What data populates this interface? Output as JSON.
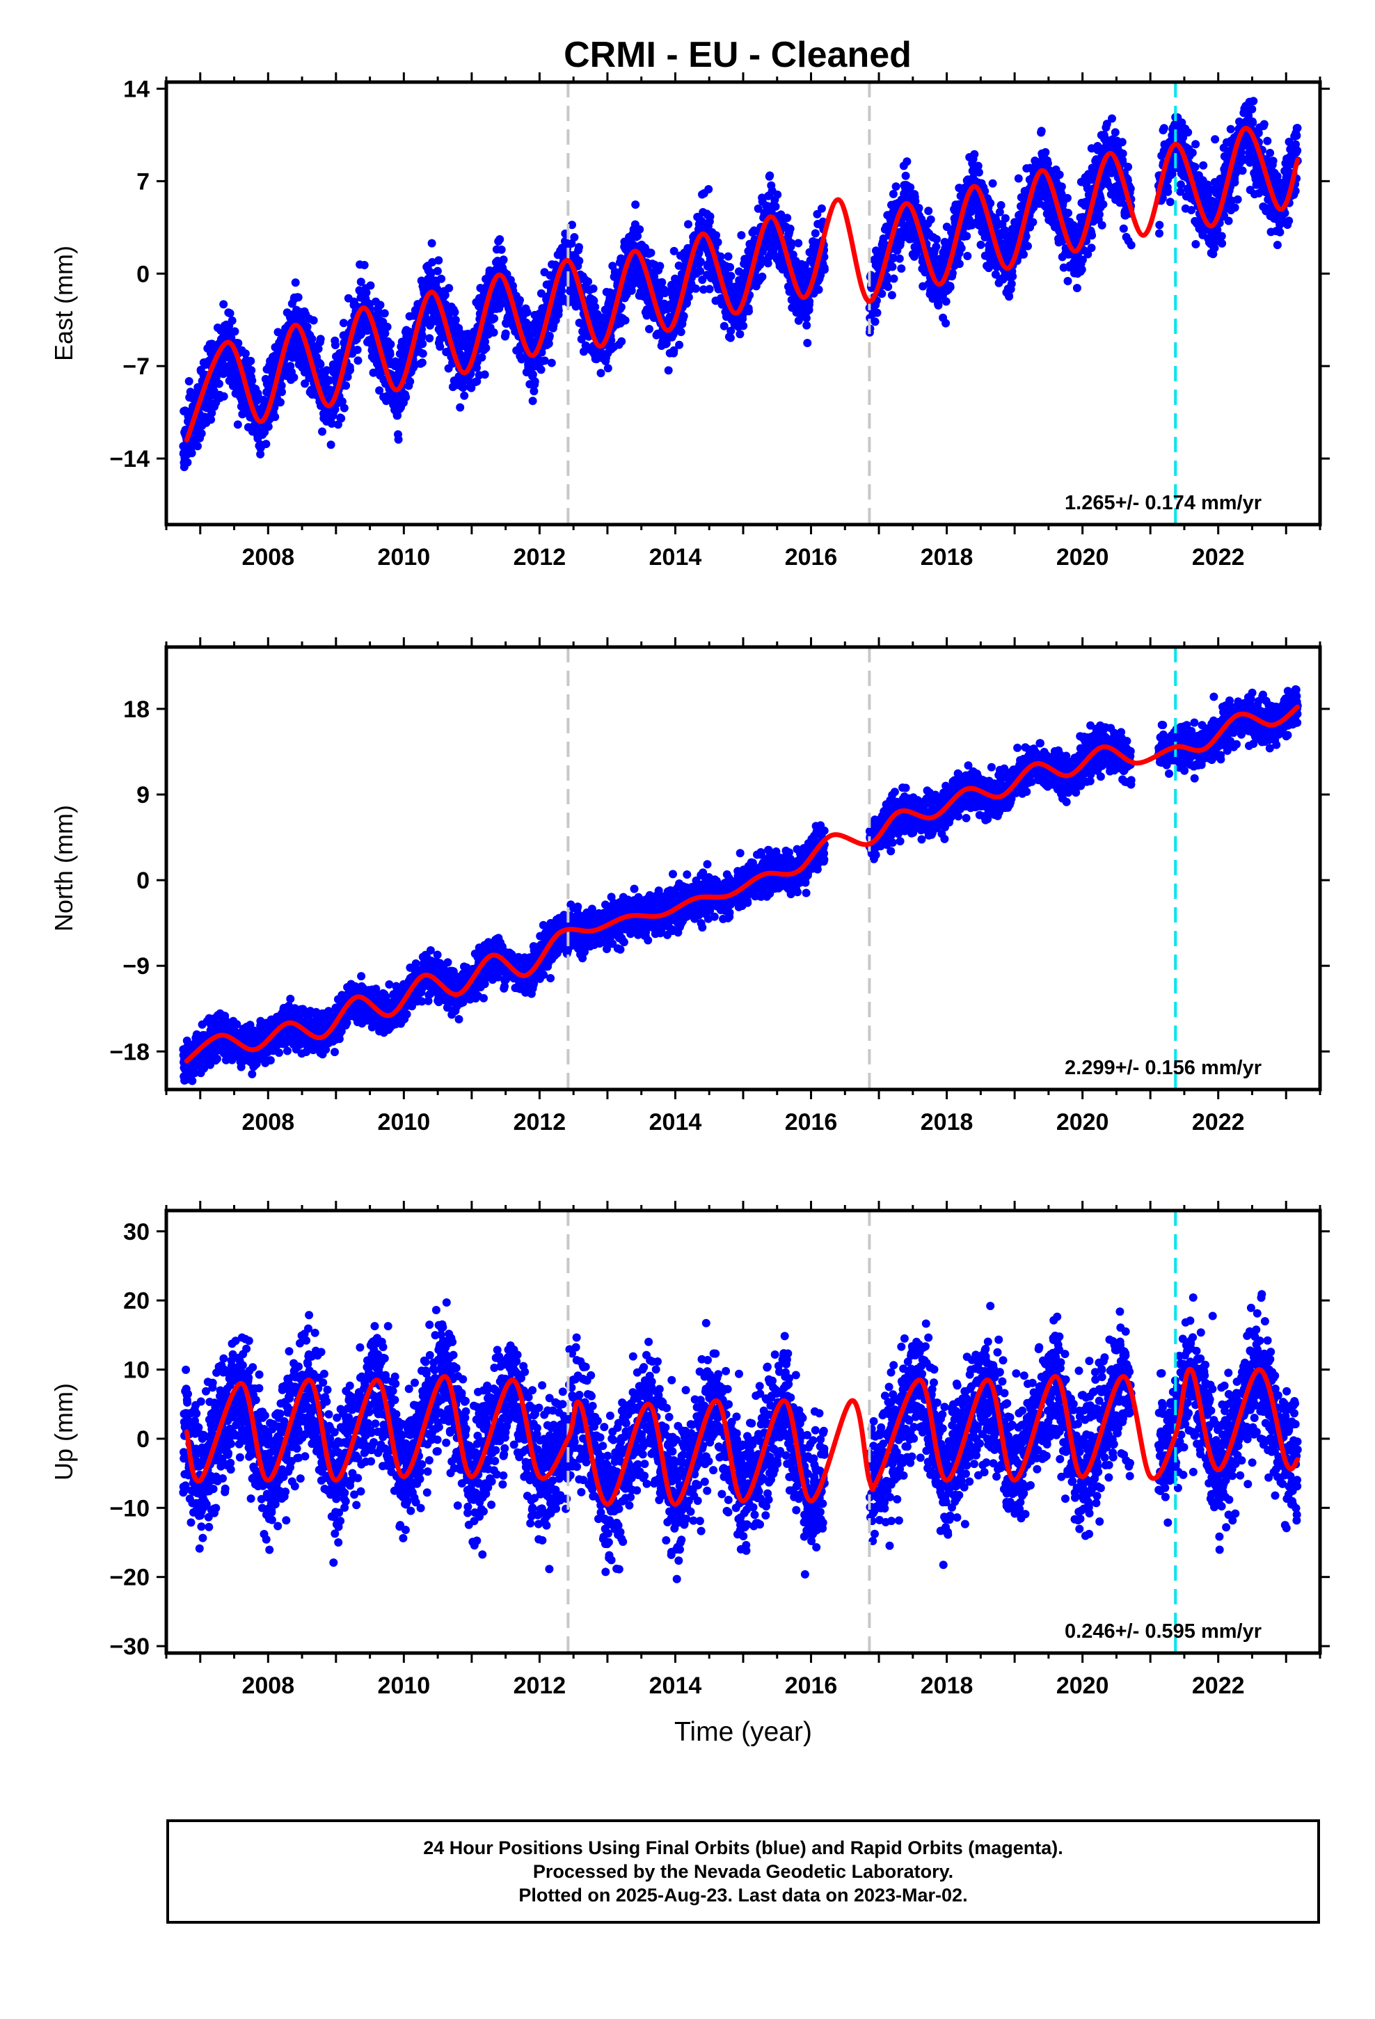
{
  "figure": {
    "title": "CRMI  - EU - Cleaned",
    "xlabel": "Time (year)",
    "footer": [
      "24 Hour Positions Using Final Orbits (blue) and Rapid Orbits (magenta).",
      "Processed by the Nevada Geodetic Laboratory.",
      "Plotted on 2025-Aug-23. Last data on 2023-Mar-02."
    ]
  },
  "colors": {
    "data_points": "#0000ff",
    "model_fit": "#ff0000",
    "equipment_change_line": "#c8c8c8",
    "earthquake_line": "#00e5ee",
    "frame": "#000000"
  },
  "chart_data": [
    {
      "type": "scatter",
      "component": "East",
      "ylabel": "East (mm)",
      "xlim": [
        2006.5,
        2023.5
      ],
      "ylim": [
        -19,
        14.5
      ],
      "yticks": [
        14,
        7,
        0,
        -7,
        -14
      ],
      "xticks": [
        2008,
        2010,
        2012,
        2014,
        2016,
        2018,
        2020,
        2022
      ],
      "rate_label": "1.265+/- 0.174 mm/yr",
      "vertical_lines": [
        {
          "x": 2012.42,
          "style": "dashed",
          "color": "#c8c8c8"
        },
        {
          "x": 2016.86,
          "style": "dashed",
          "color": "#c8c8c8"
        },
        {
          "x": 2021.37,
          "style": "dashed",
          "color": "#00e5ee"
        }
      ],
      "series": [
        {
          "role": "data",
          "x_range": [
            2006.75,
            2023.17
          ],
          "gaps": [
            [
              2016.2,
              2016.86
            ],
            [
              2020.72,
              2021.12
            ]
          ],
          "point_count": 5600,
          "trend": [
            [
              2006.8,
              -11.5
            ],
            [
              2012.4,
              -4.0
            ],
            [
              2012.42,
              -1.8
            ],
            [
              2016.86,
              0.0
            ],
            [
              2016.86,
              0.5
            ],
            [
              2021.37,
              5.0
            ],
            [
              2023.17,
              6.8
            ]
          ],
          "seasonal_amplitude": 3.2,
          "scatter_sd": 1.35
        },
        {
          "role": "model",
          "name": "",
          "x": [
            2006.8,
            2007.4,
            2007.9,
            2008.4,
            2008.9,
            2009.4,
            2009.9,
            2010.4,
            2010.9,
            2011.4,
            2011.9,
            2012.4,
            2012.9,
            2013.4,
            2013.9,
            2014.4,
            2014.9,
            2015.4,
            2015.9,
            2016.4,
            2016.86,
            2017.4,
            2017.9,
            2018.4,
            2018.9,
            2019.4,
            2019.9,
            2020.4,
            2020.9,
            2021.37,
            2021.9,
            2022.4,
            2022.9,
            2023.17
          ],
          "y": [
            -12.6,
            -5.2,
            -11.2,
            -3.9,
            -10.0,
            -2.6,
            -8.8,
            -1.4,
            -7.5,
            -0.1,
            -6.2,
            1.0,
            -5.5,
            1.7,
            -4.3,
            3.0,
            -3.0,
            4.3,
            -1.8,
            5.6,
            -2.1,
            5.3,
            -0.8,
            6.6,
            0.4,
            7.8,
            1.7,
            9.1,
            2.9,
            9.8,
            3.6,
            11.0,
            4.9,
            8.6
          ]
        }
      ]
    },
    {
      "type": "scatter",
      "component": "North",
      "ylabel": "North (mm)",
      "xlim": [
        2006.5,
        2023.5
      ],
      "ylim": [
        -22,
        24.5
      ],
      "yticks": [
        18,
        9,
        0,
        -9,
        -18
      ],
      "xticks": [
        2008,
        2010,
        2012,
        2014,
        2016,
        2018,
        2020,
        2022
      ],
      "rate_label": "2.299+/- 0.156 mm/yr",
      "vertical_lines": [
        {
          "x": 2012.42,
          "style": "dashed",
          "color": "#c8c8c8"
        },
        {
          "x": 2016.86,
          "style": "dashed",
          "color": "#c8c8c8"
        },
        {
          "x": 2021.37,
          "style": "dashed",
          "color": "#00e5ee"
        }
      ],
      "series": [
        {
          "role": "data",
          "x_range": [
            2006.75,
            2023.17
          ],
          "gaps": [
            [
              2016.2,
              2016.86
            ],
            [
              2020.72,
              2021.12
            ]
          ],
          "point_count": 5600,
          "trend": [
            [
              2006.8,
              -19.0
            ],
            [
              2012.4,
              -6.3
            ],
            [
              2012.42,
              -5.5
            ],
            [
              2016.86,
              3.8
            ],
            [
              2016.86,
              4.3
            ],
            [
              2021.37,
              14.0
            ],
            [
              2023.17,
              17.8
            ]
          ],
          "seasonal_amplitude": 1.1,
          "scatter_sd": 1.05
        },
        {
          "role": "model",
          "name": "",
          "x": [
            2006.8,
            2007.3,
            2007.8,
            2008.3,
            2008.8,
            2009.3,
            2009.8,
            2010.3,
            2010.8,
            2011.3,
            2011.8,
            2012.3,
            2012.8,
            2013.3,
            2013.8,
            2014.3,
            2014.8,
            2015.3,
            2015.8,
            2016.3,
            2016.86,
            2017.3,
            2017.8,
            2018.3,
            2018.8,
            2019.3,
            2019.8,
            2020.3,
            2020.8,
            2021.37,
            2021.8,
            2022.3,
            2022.8,
            2023.17
          ],
          "y": [
            -19.0,
            -16.3,
            -17.8,
            -15.0,
            -16.5,
            -12.3,
            -14.2,
            -10.0,
            -12.0,
            -7.9,
            -10.0,
            -5.5,
            -5.3,
            -3.8,
            -3.7,
            -1.9,
            -1.6,
            0.6,
            0.9,
            4.7,
            3.8,
            7.2,
            6.6,
            9.6,
            8.8,
            12.2,
            11.0,
            14.0,
            12.3,
            14.0,
            13.8,
            17.4,
            16.3,
            18.2
          ]
        }
      ]
    },
    {
      "type": "scatter",
      "component": "Up",
      "ylabel": "Up (mm)",
      "xlim": [
        2006.5,
        2023.5
      ],
      "ylim": [
        -31,
        33
      ],
      "yticks": [
        30,
        20,
        10,
        0,
        -10,
        -20,
        -30
      ],
      "xticks": [
        2008,
        2010,
        2012,
        2014,
        2016,
        2018,
        2020,
        2022
      ],
      "rate_label": "0.246+/- 0.595 mm/yr",
      "vertical_lines": [
        {
          "x": 2012.42,
          "style": "dashed",
          "color": "#c8c8c8"
        },
        {
          "x": 2016.86,
          "style": "dashed",
          "color": "#c8c8c8"
        },
        {
          "x": 2021.37,
          "style": "dashed",
          "color": "#00e5ee"
        }
      ],
      "series": [
        {
          "role": "data",
          "x_range": [
            2006.75,
            2023.17
          ],
          "gaps": [
            [
              2016.2,
              2016.86
            ],
            [
              2020.72,
              2021.12
            ]
          ],
          "point_count": 5600,
          "trend": [
            [
              2006.8,
              0.0
            ],
            [
              2023.17,
              0.5
            ]
          ],
          "seasonal_amplitude": 7.0,
          "scatter_sd": 4.5
        },
        {
          "role": "model",
          "name": "",
          "x": [
            2006.8,
            2007.0,
            2007.6,
            2008.0,
            2008.6,
            2009.0,
            2009.6,
            2010.0,
            2010.6,
            2011.0,
            2011.6,
            2012.0,
            2012.42,
            2012.6,
            2013.0,
            2013.6,
            2014.0,
            2014.6,
            2015.0,
            2015.6,
            2016.0,
            2016.6,
            2016.86,
            2017.0,
            2017.6,
            2018.0,
            2018.6,
            2019.0,
            2019.6,
            2020.0,
            2020.6,
            2021.0,
            2021.37,
            2021.6,
            2022.0,
            2022.6,
            2023.0,
            2023.17
          ],
          "y": [
            1.0,
            -6.0,
            8.0,
            -6.0,
            8.5,
            -6.0,
            8.5,
            -5.5,
            9.0,
            -5.5,
            8.5,
            -5.5,
            0.0,
            5.0,
            -9.5,
            5.0,
            -9.5,
            5.5,
            -9.0,
            5.5,
            -9.0,
            5.5,
            -6.0,
            -5.5,
            8.5,
            -6.0,
            8.5,
            -6.0,
            9.0,
            -5.5,
            9.0,
            -5.5,
            0.5,
            10.0,
            -4.5,
            10.0,
            -3.5,
            -3.0
          ]
        }
      ]
    }
  ]
}
